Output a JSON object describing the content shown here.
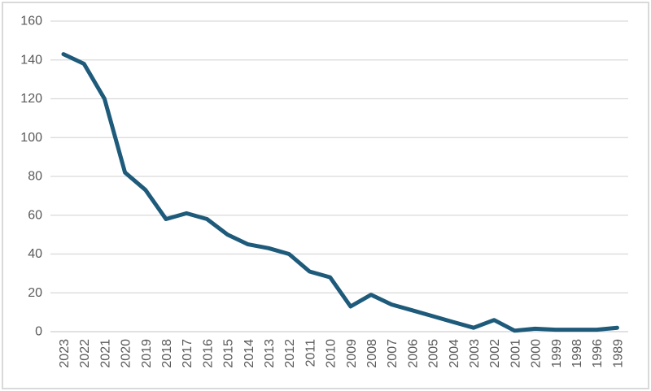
{
  "chart_data": {
    "type": "line",
    "title": "",
    "xlabel": "",
    "ylabel": "",
    "categories": [
      "2023",
      "2022",
      "2021",
      "2020",
      "2019",
      "2018",
      "2017",
      "2016",
      "2015",
      "2014",
      "2013",
      "2012",
      "2011",
      "2010",
      "2009",
      "2008",
      "2007",
      "2006",
      "2005",
      "2004",
      "2003",
      "2002",
      "2001",
      "2000",
      "1999",
      "1998",
      "1996",
      "1989"
    ],
    "values": [
      143,
      138,
      120,
      82,
      73,
      58,
      61,
      58,
      50,
      45,
      43,
      40,
      31,
      28,
      13,
      19,
      14,
      11,
      8,
      5,
      2,
      6,
      0.5,
      1.5,
      1,
      1,
      1,
      2
    ],
    "yticks": [
      0,
      20,
      40,
      60,
      80,
      100,
      120,
      140,
      160
    ],
    "ylim": [
      0,
      160
    ],
    "grid": true,
    "legend": false,
    "x_label_rotation": -90
  },
  "colors": {
    "line": "#1e5a7a",
    "gridline": "#d9d9d9",
    "axis_line": "#cfcfcf",
    "axis_label": "#595959",
    "border": "#d9d9d9",
    "background": "#ffffff"
  }
}
